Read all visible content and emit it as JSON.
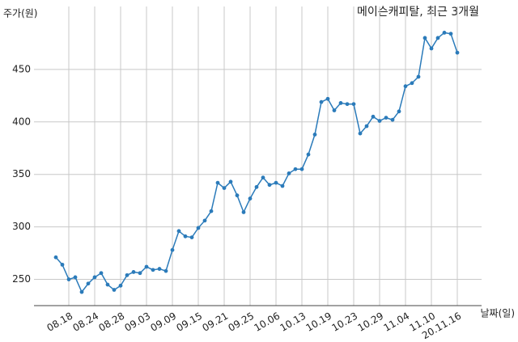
{
  "chart_data": {
    "type": "line",
    "title": "메이슨캐피탈, 최근 3개월",
    "y_label": "주가(원)",
    "x_label": "날짜(일)",
    "categories": [
      null,
      null,
      "08.18",
      null,
      null,
      null,
      "08.24",
      null,
      null,
      null,
      "08.28",
      null,
      null,
      null,
      "09.03",
      null,
      null,
      null,
      "09.09",
      null,
      null,
      null,
      "09.15",
      null,
      null,
      null,
      "09.21",
      null,
      null,
      null,
      "09.25",
      null,
      null,
      null,
      "10.06",
      null,
      null,
      null,
      "10.13",
      null,
      null,
      null,
      "10.19",
      null,
      null,
      null,
      "10.23",
      null,
      null,
      null,
      "10.29",
      null,
      null,
      null,
      "11.04",
      null,
      null,
      null,
      "11.10",
      null,
      null,
      null,
      "20.11.16"
    ],
    "series": [
      {
        "name": "주가",
        "color": "#2b7bba",
        "values": [
          271,
          264,
          250,
          252,
          238,
          246,
          252,
          256,
          245,
          240,
          244,
          254,
          257,
          256,
          262,
          259,
          260,
          258,
          278,
          296,
          291,
          290,
          299,
          306,
          315,
          342,
          337,
          343,
          330,
          314,
          327,
          338,
          347,
          340,
          342,
          339,
          351,
          355,
          355,
          369,
          388,
          419,
          422,
          411,
          418,
          417,
          417,
          389,
          396,
          405,
          401,
          404,
          402,
          410,
          434,
          437,
          443,
          480,
          470,
          480,
          485,
          484,
          466
        ]
      }
    ],
    "ylim": [
      225,
      510
    ],
    "yticks": [
      250,
      300,
      350,
      400,
      450
    ],
    "grid": true
  }
}
